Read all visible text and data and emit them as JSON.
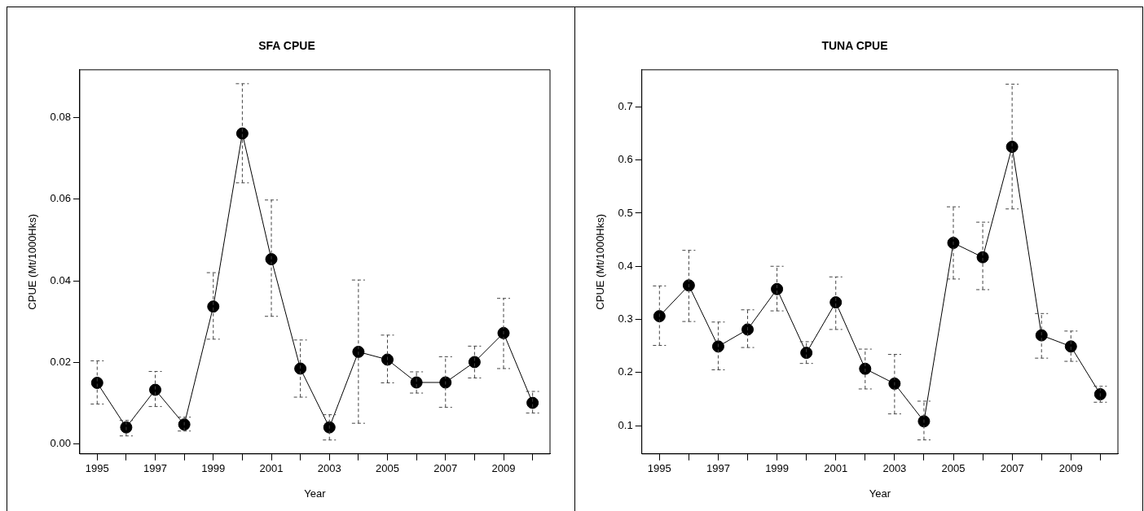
{
  "chart_data": [
    {
      "type": "line",
      "title": "SFA CPUE",
      "xlabel": "Year",
      "ylabel": "CPUE (Mt/1000Hks)",
      "color": "#000000",
      "marker": "circle",
      "line_style": "solid",
      "grid": false,
      "x": [
        1995,
        1996,
        1997,
        1998,
        1999,
        2000,
        2001,
        2002,
        2003,
        2004,
        2005,
        2006,
        2007,
        2008,
        2009,
        2010
      ],
      "values": [
        0.015,
        0.0041,
        0.0133,
        0.0048,
        0.0337,
        0.0761,
        0.0453,
        0.0185,
        0.0041,
        0.0226,
        0.0207,
        0.0151,
        0.0151,
        0.0201,
        0.0272,
        0.0101
      ],
      "errors": [
        [
          0.0098,
          0.0204
        ],
        [
          0.002,
          0.0058
        ],
        [
          0.0092,
          0.0178
        ],
        [
          0.0032,
          0.0066
        ],
        [
          0.0257,
          0.042
        ],
        [
          0.064,
          0.0883
        ],
        [
          0.0313,
          0.0598
        ],
        [
          0.0115,
          0.0255
        ],
        [
          0.001,
          0.0072
        ],
        [
          0.0051,
          0.0402
        ],
        [
          0.015,
          0.0267
        ],
        [
          0.0125,
          0.0177
        ],
        [
          0.009,
          0.0214
        ],
        [
          0.0162,
          0.024
        ],
        [
          0.0185,
          0.0357
        ],
        [
          0.0076,
          0.0129
        ]
      ],
      "xlim": [
        1994.4,
        2010.6
      ],
      "ylim": [
        -0.0024,
        0.0917
      ],
      "xticks": [
        1995,
        {
          "value": 1996,
          "label": null
        },
        1997,
        {
          "value": 1998,
          "label": null
        },
        1999,
        {
          "value": 2000,
          "label": null
        },
        2001,
        {
          "value": 2002,
          "label": null
        },
        2003,
        {
          "value": 2004,
          "label": null
        },
        2005,
        {
          "value": 2006,
          "label": null
        },
        2007,
        {
          "value": 2008,
          "label": null
        },
        2009,
        {
          "value": 2010,
          "label": null
        }
      ],
      "yticks": [
        {
          "value": 0,
          "label": "0.00"
        },
        {
          "value": 0.02,
          "label": "0.02"
        },
        {
          "value": 0.04,
          "label": "0.04"
        },
        {
          "value": 0.06,
          "label": "0.06"
        },
        {
          "value": 0.08,
          "label": "0.08"
        }
      ]
    },
    {
      "type": "line",
      "title": "TUNA CPUE",
      "xlabel": "Year",
      "ylabel": "CPUE (Mt/1000Hks)",
      "color": "#000000",
      "marker": "circle",
      "line_style": "solid",
      "grid": false,
      "x": [
        1995,
        1996,
        1997,
        1998,
        1999,
        2000,
        2001,
        2002,
        2003,
        2004,
        2005,
        2006,
        2007,
        2008,
        2009,
        2010
      ],
      "values": [
        0.306,
        0.364,
        0.249,
        0.281,
        0.357,
        0.237,
        0.332,
        0.207,
        0.179,
        0.108,
        0.444,
        0.417,
        0.625,
        0.27,
        0.249,
        0.159
      ],
      "errors": [
        [
          0.251,
          0.363
        ],
        [
          0.296,
          0.43
        ],
        [
          0.205,
          0.295
        ],
        [
          0.247,
          0.318
        ],
        [
          0.316,
          0.4
        ],
        [
          0.217,
          0.258
        ],
        [
          0.281,
          0.38
        ],
        [
          0.169,
          0.244
        ],
        [
          0.122,
          0.234
        ],
        [
          0.073,
          0.146
        ],
        [
          0.376,
          0.512
        ],
        [
          0.356,
          0.483
        ],
        [
          0.508,
          0.743
        ],
        [
          0.227,
          0.311
        ],
        [
          0.221,
          0.278
        ],
        [
          0.144,
          0.174
        ]
      ],
      "xlim": [
        1994.4,
        2010.6
      ],
      "ylim": [
        0.0467,
        0.77
      ],
      "xticks": [
        1995,
        {
          "value": 1996,
          "label": null
        },
        1997,
        {
          "value": 1998,
          "label": null
        },
        1999,
        {
          "value": 2000,
          "label": null
        },
        2001,
        {
          "value": 2002,
          "label": null
        },
        2003,
        {
          "value": 2004,
          "label": null
        },
        2005,
        {
          "value": 2006,
          "label": null
        },
        2007,
        {
          "value": 2008,
          "label": null
        },
        2009,
        {
          "value": 2010,
          "label": null
        }
      ],
      "yticks": [
        0.1,
        0.2,
        0.3,
        0.4,
        0.5,
        0.6,
        0.7
      ]
    }
  ]
}
